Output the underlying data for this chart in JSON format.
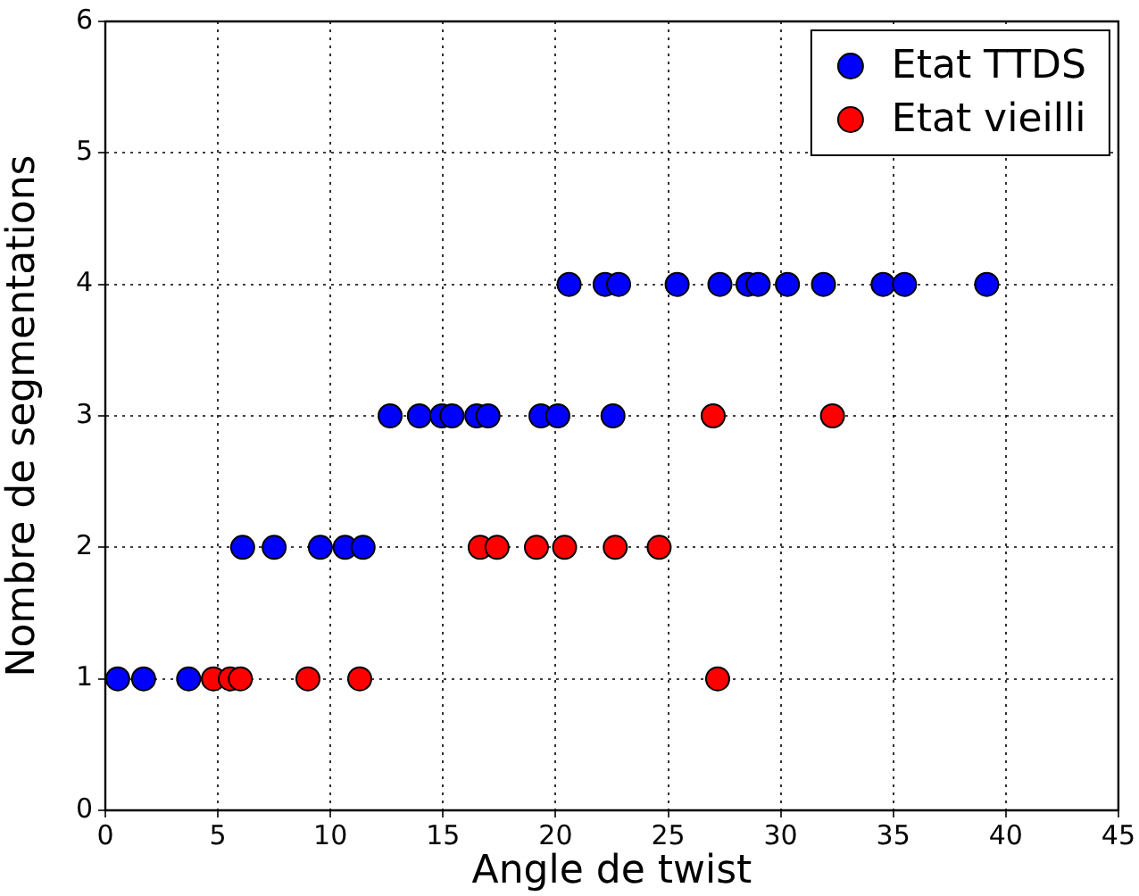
{
  "chart_data": {
    "type": "scatter",
    "xlabel": "Angle de twist",
    "ylabel": "Nombre de segmentations",
    "xlim": [
      0,
      45
    ],
    "xticks": [
      0,
      5,
      10,
      15,
      20,
      25,
      30,
      35,
      40,
      45
    ],
    "ylim": [
      0,
      6
    ],
    "yticks": [
      0,
      1,
      2,
      3,
      4,
      5,
      6
    ],
    "grid": true,
    "legend": "top right",
    "marker": "circle",
    "series": [
      {
        "name": "Etat TTDS",
        "color": "#0000ff",
        "x": [
          0.55,
          1.7,
          3.7,
          6.1,
          7.5,
          9.55,
          10.65,
          11.45,
          12.65,
          13.95,
          14.95,
          15.4,
          16.5,
          17.0,
          19.35,
          20.1,
          22.55,
          20.6,
          22.2,
          22.8,
          25.4,
          27.3,
          28.55,
          29.0,
          30.3,
          31.9,
          34.55,
          35.5,
          39.15
        ],
        "values": [
          1,
          1,
          1,
          2,
          2,
          2,
          2,
          2,
          3,
          3,
          3,
          3,
          3,
          3,
          3,
          3,
          3,
          4,
          4,
          4,
          4,
          4,
          4,
          4,
          4,
          4,
          4,
          4,
          4
        ]
      },
      {
        "name": "Etat vieilli",
        "color": "#ff0000",
        "x": [
          4.8,
          5.55,
          6.0,
          9.0,
          11.3,
          27.2,
          16.65,
          17.4,
          19.15,
          20.4,
          22.65,
          24.6,
          27.0,
          32.3
        ],
        "values": [
          1,
          1,
          1,
          1,
          1,
          1,
          2,
          2,
          2,
          2,
          2,
          2,
          3,
          3
        ]
      }
    ]
  }
}
